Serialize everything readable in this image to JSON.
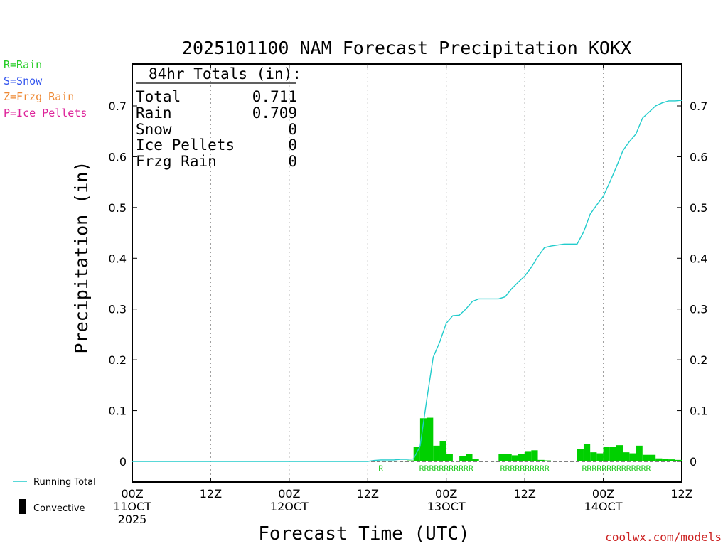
{
  "chart_data": {
    "type": "bar",
    "title": "2025101100 NAM Forecast Precipitation KOKX",
    "ylabel": "Precipitation  (in)",
    "xlabel": "Forecast Time (UTC)",
    "ylim": [
      -0.04,
      0.78
    ],
    "xlim": [
      0,
      84
    ],
    "y_ticks": [
      "0",
      "0.1",
      "0.2",
      "0.3",
      "0.4",
      "0.5",
      "0.6",
      "0.7"
    ],
    "x_ticks": [
      {
        "hour": 0,
        "line1": "00Z",
        "line2": "11OCT",
        "line3": "2025"
      },
      {
        "hour": 12,
        "line1": "12Z",
        "line2": "",
        "line3": ""
      },
      {
        "hour": 24,
        "line1": "00Z",
        "line2": "12OCT",
        "line3": ""
      },
      {
        "hour": 36,
        "line1": "12Z",
        "line2": "",
        "line3": ""
      },
      {
        "hour": 48,
        "line1": "00Z",
        "line2": "13OCT",
        "line3": ""
      },
      {
        "hour": 60,
        "line1": "12Z",
        "line2": "",
        "line3": ""
      },
      {
        "hour": 72,
        "line1": "00Z",
        "line2": "14OCT",
        "line3": ""
      },
      {
        "hour": 84,
        "line1": "12Z",
        "line2": "",
        "line3": ""
      }
    ],
    "bars": {
      "name": "Hourly Precipitation",
      "hours": [
        37,
        38,
        39,
        40,
        41,
        42,
        43,
        44,
        45,
        46,
        47,
        48,
        49,
        50,
        51,
        52,
        53,
        54,
        55,
        56,
        57,
        58,
        59,
        60,
        61,
        62,
        63,
        64,
        65,
        66,
        67,
        68,
        69,
        70,
        71,
        72,
        73,
        74,
        75,
        76,
        77,
        78,
        79,
        80,
        81,
        82,
        83,
        84
      ],
      "values": [
        0.001,
        0.001,
        0.001,
        0.001,
        0.001,
        0.001,
        0.002,
        0.028,
        0.085,
        0.086,
        0.031,
        0.04,
        0.015,
        0,
        0.011,
        0.015,
        0.005,
        0,
        0,
        0.001,
        0.015,
        0.014,
        0.012,
        0.015,
        0.019,
        0.022,
        0.003,
        0.002,
        0,
        0,
        0,
        0,
        0.024,
        0.035,
        0.018,
        0.016,
        0.028,
        0.028,
        0.032,
        0.018,
        0.016,
        0.031,
        0.013,
        0.013,
        0.006,
        0.005,
        0.004,
        0.003
      ],
      "color": "#00d000"
    },
    "running_total": {
      "name": "Running Total",
      "color": "#22cccc",
      "hours": [
        0,
        36,
        37,
        38,
        39,
        40,
        41,
        42,
        43,
        44,
        45,
        46,
        47,
        48,
        49,
        50,
        51,
        52,
        53,
        54,
        55,
        56,
        57,
        58,
        59,
        60,
        61,
        62,
        63,
        64,
        65,
        66,
        67,
        68,
        69,
        70,
        71,
        72,
        73,
        74,
        75,
        76,
        77,
        78,
        79,
        80,
        81,
        82,
        83,
        84
      ],
      "values": [
        0,
        0,
        0.002,
        0.003,
        0.003,
        0.003,
        0.004,
        0.004,
        0.005,
        0.03,
        0.12,
        0.205,
        0.235,
        0.272,
        0.287,
        0.288,
        0.3,
        0.315,
        0.32,
        0.32,
        0.32,
        0.32,
        0.324,
        0.34,
        0.353,
        0.365,
        0.382,
        0.403,
        0.421,
        0.424,
        0.426,
        0.428,
        0.428,
        0.428,
        0.452,
        0.487,
        0.505,
        0.522,
        0.55,
        0.58,
        0.612,
        0.63,
        0.645,
        0.676,
        0.688,
        0.7,
        0.706,
        0.71,
        0.71,
        0.711
      ]
    },
    "ptype_labels": [
      {
        "text": "R",
        "center_hour": 38
      },
      {
        "text": "RRRRRRRRRRR",
        "center_hour": 48
      },
      {
        "text": "RRRRRRRRRR",
        "center_hour": 60
      },
      {
        "text": "RRRRRRRRRRRRRR",
        "center_hour": 74
      }
    ]
  },
  "totals_box": {
    "header": "84hr Totals (in):",
    "rows": [
      {
        "label": "Total",
        "value": "0.711"
      },
      {
        "label": "Rain",
        "value": "0.709"
      },
      {
        "label": "Snow",
        "value": "0"
      },
      {
        "label": "Ice Pellets",
        "value": "0"
      },
      {
        "label": "Frzg Rain",
        "value": "0"
      }
    ]
  },
  "type_key": [
    {
      "text": "R=Rain",
      "color": "#22cc22"
    },
    {
      "text": "S=Snow",
      "color": "#3355ee"
    },
    {
      "text": "Z=Frzg Rain",
      "color": "#ee8833"
    },
    {
      "text": "P=Ice Pellets",
      "color": "#dd2299"
    }
  ],
  "legend": {
    "running_total": "Running Total",
    "convective": "Convective"
  },
  "credit": "coolwx.com/models",
  "credit_color": "#cc2222",
  "convective_color": "#000000"
}
